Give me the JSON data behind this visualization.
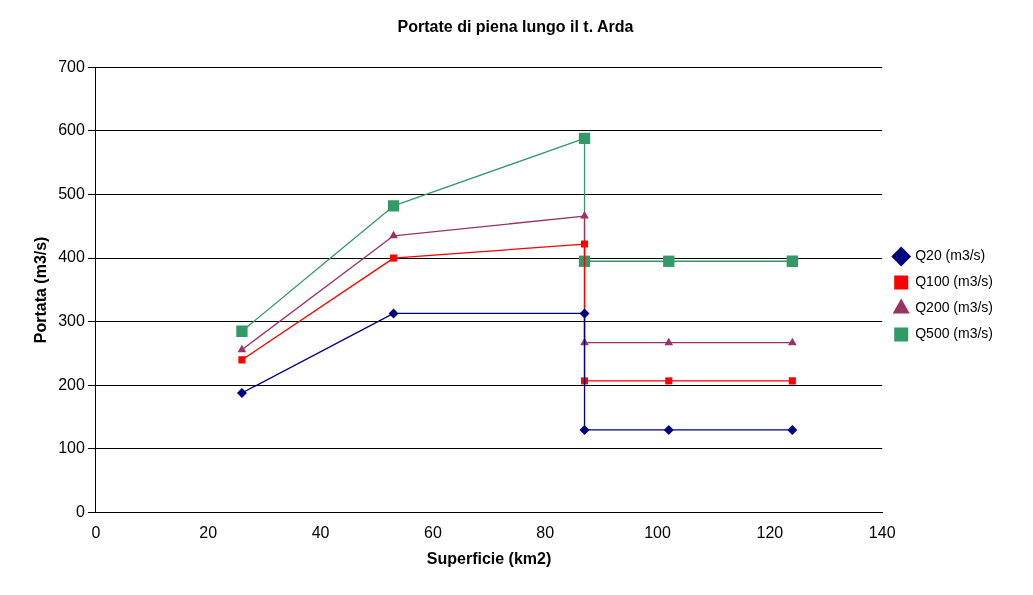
{
  "chart_data": {
    "type": "line",
    "title": "Portate di piena lungo il t. Arda",
    "xlabel": "Superficie (km2)",
    "ylabel": "Portata (m3/s)",
    "x": [
      26,
      53,
      87,
      87,
      102,
      124
    ],
    "series": [
      {
        "name": "Q20 (m3/s)",
        "color": "#000080",
        "marker": "diamond",
        "values": [
          188,
          313,
          313,
          130,
          130,
          130
        ]
      },
      {
        "name": "Q100 (m3/s)",
        "color": "#ff0000",
        "marker": "square",
        "values": [
          240,
          400,
          422,
          207,
          207,
          207
        ]
      },
      {
        "name": "Q200 (m3/s)",
        "color": "#993366",
        "marker": "triangle",
        "values": [
          256,
          435,
          466,
          267,
          267,
          267
        ]
      },
      {
        "name": "Q500 (m3/s)",
        "color": "#339966",
        "marker": "square",
        "values": [
          285,
          482,
          588,
          395,
          395,
          395
        ]
      }
    ],
    "xlim": [
      0,
      140
    ],
    "xticks": [
      0,
      20,
      40,
      60,
      80,
      100,
      120,
      140
    ],
    "ylim": [
      0,
      700
    ],
    "yticks": [
      0,
      100,
      200,
      300,
      400,
      500,
      600,
      700
    ],
    "grid": "y",
    "legend": "right",
    "line_style": "solid"
  }
}
